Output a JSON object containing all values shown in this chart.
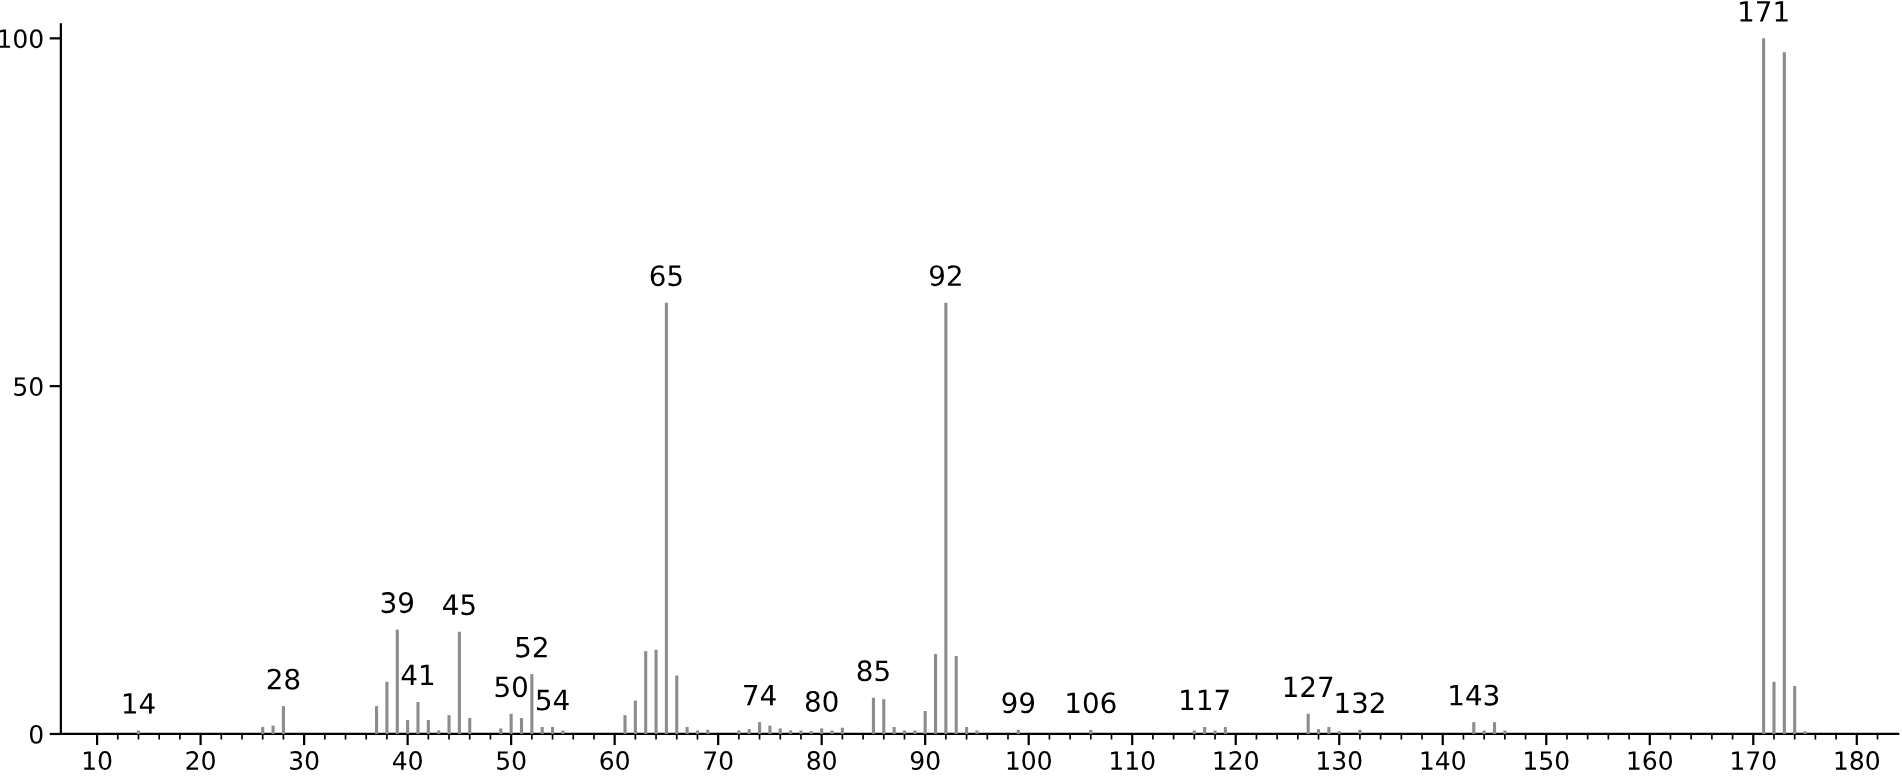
{
  "chart_data": {
    "type": "bar",
    "color": "#8c8c8c",
    "x": [
      14,
      26,
      27,
      28,
      37,
      38,
      39,
      40,
      41,
      42,
      43,
      44,
      45,
      46,
      49,
      50,
      51,
      52,
      53,
      54,
      55,
      61,
      62,
      63,
      64,
      65,
      66,
      67,
      68,
      69,
      72,
      73,
      74,
      75,
      76,
      77,
      78,
      79,
      80,
      81,
      82,
      85,
      86,
      87,
      88,
      89,
      90,
      91,
      92,
      93,
      94,
      95,
      99,
      106,
      116,
      117,
      118,
      119,
      127,
      128,
      129,
      130,
      132,
      143,
      144,
      145,
      146,
      171,
      172,
      173,
      174,
      175
    ],
    "values": [
      0.5,
      1,
      1.2,
      4,
      4,
      7.5,
      15,
      2,
      4.6,
      2,
      0.5,
      2.7,
      14.7,
      2.3,
      0.8,
      2.9,
      2.3,
      8.6,
      1,
      1,
      0.5,
      2.7,
      4.8,
      11.9,
      12.1,
      62,
      8.4,
      1,
      0.5,
      0.6,
      0.5,
      0.7,
      1.7,
      1.2,
      0.8,
      0.5,
      0.5,
      0.4,
      0.8,
      0.5,
      0.9,
      5.2,
      5,
      1,
      0.5,
      0.5,
      3.3,
      11.5,
      62,
      11.2,
      1,
      0.5,
      0.6,
      0.6,
      0.5,
      1,
      0.5,
      1,
      2.9,
      0.7,
      1,
      0.4,
      0.6,
      1.7,
      0.5,
      1.7,
      0.5,
      100,
      7.5,
      98,
      6.9,
      0.4
    ],
    "annotations": [
      {
        "text": "14",
        "x": 14,
        "y": 0.5
      },
      {
        "text": "28",
        "x": 28,
        "y": 4
      },
      {
        "text": "39",
        "x": 39,
        "y": 15
      },
      {
        "text": "41",
        "x": 41,
        "y": 4.6
      },
      {
        "text": "45",
        "x": 45,
        "y": 14.7
      },
      {
        "text": "50",
        "x": 50,
        "y": 2.9
      },
      {
        "text": "52",
        "x": 52,
        "y": 8.6
      },
      {
        "text": "54",
        "x": 54,
        "y": 1
      },
      {
        "text": "65",
        "x": 65,
        "y": 62
      },
      {
        "text": "74",
        "x": 74,
        "y": 1.7
      },
      {
        "text": "80",
        "x": 80,
        "y": 0.8
      },
      {
        "text": "85",
        "x": 85,
        "y": 5.2
      },
      {
        "text": "92",
        "x": 92,
        "y": 62
      },
      {
        "text": "99",
        "x": 99,
        "y": 0.6
      },
      {
        "text": "106",
        "x": 106,
        "y": 0.6
      },
      {
        "text": "117",
        "x": 117,
        "y": 1
      },
      {
        "text": "127",
        "x": 127,
        "y": 2.9
      },
      {
        "text": "132",
        "x": 132,
        "y": 0.6
      },
      {
        "text": "143",
        "x": 143,
        "y": 1.7
      },
      {
        "text": "171",
        "x": 171,
        "y": 100
      }
    ],
    "xlim": [
      6.5,
      184
    ],
    "xticks": [
      10,
      {
        "value": 12,
        "label": null
      },
      {
        "value": 14,
        "label": null
      },
      {
        "value": 16,
        "label": null
      },
      {
        "value": 18,
        "label": null
      },
      20,
      {
        "value": 22,
        "label": null
      },
      {
        "value": 24,
        "label": null
      },
      {
        "value": 26,
        "label": null
      },
      {
        "value": 28,
        "label": null
      },
      30,
      {
        "value": 32,
        "label": null
      },
      {
        "value": 34,
        "label": null
      },
      {
        "value": 36,
        "label": null
      },
      {
        "value": 38,
        "label": null
      },
      40,
      {
        "value": 42,
        "label": null
      },
      {
        "value": 44,
        "label": null
      },
      {
        "value": 46,
        "label": null
      },
      {
        "value": 48,
        "label": null
      },
      50,
      {
        "value": 52,
        "label": null
      },
      {
        "value": 54,
        "label": null
      },
      {
        "value": 56,
        "label": null
      },
      {
        "value": 58,
        "label": null
      },
      60,
      {
        "value": 62,
        "label": null
      },
      {
        "value": 64,
        "label": null
      },
      {
        "value": 66,
        "label": null
      },
      {
        "value": 68,
        "label": null
      },
      70,
      {
        "value": 72,
        "label": null
      },
      {
        "value": 74,
        "label": null
      },
      {
        "value": 76,
        "label": null
      },
      {
        "value": 78,
        "label": null
      },
      80,
      {
        "value": 82,
        "label": null
      },
      {
        "value": 84,
        "label": null
      },
      {
        "value": 86,
        "label": null
      },
      {
        "value": 88,
        "label": null
      },
      90,
      {
        "value": 92,
        "label": null
      },
      {
        "value": 94,
        "label": null
      },
      {
        "value": 96,
        "label": null
      },
      {
        "value": 98,
        "label": null
      },
      100,
      {
        "value": 102,
        "label": null
      },
      {
        "value": 104,
        "label": null
      },
      {
        "value": 106,
        "label": null
      },
      {
        "value": 108,
        "label": null
      },
      110,
      {
        "value": 112,
        "label": null
      },
      {
        "value": 114,
        "label": null
      },
      {
        "value": 116,
        "label": null
      },
      {
        "value": 118,
        "label": null
      },
      120,
      {
        "value": 122,
        "label": null
      },
      {
        "value": 124,
        "label": null
      },
      {
        "value": 126,
        "label": null
      },
      {
        "value": 128,
        "label": null
      },
      130,
      {
        "value": 132,
        "label": null
      },
      {
        "value": 134,
        "label": null
      },
      {
        "value": 136,
        "label": null
      },
      {
        "value": 138,
        "label": null
      },
      140,
      {
        "value": 142,
        "label": null
      },
      {
        "value": 144,
        "label": null
      },
      {
        "value": 146,
        "label": null
      },
      {
        "value": 148,
        "label": null
      },
      150,
      {
        "value": 152,
        "label": null
      },
      {
        "value": 154,
        "label": null
      },
      {
        "value": 156,
        "label": null
      },
      {
        "value": 158,
        "label": null
      },
      160,
      {
        "value": 162,
        "label": null
      },
      {
        "value": 164,
        "label": null
      },
      {
        "value": 166,
        "label": null
      },
      {
        "value": 168,
        "label": null
      },
      170,
      {
        "value": 172,
        "label": null
      },
      {
        "value": 174,
        "label": null
      },
      {
        "value": 176,
        "label": null
      },
      {
        "value": 178,
        "label": null
      },
      180,
      {
        "value": 182,
        "label": null
      }
    ],
    "ylim": [
      0,
      102
    ],
    "yticks": [
      0,
      50,
      100
    ],
    "grid": false
  }
}
